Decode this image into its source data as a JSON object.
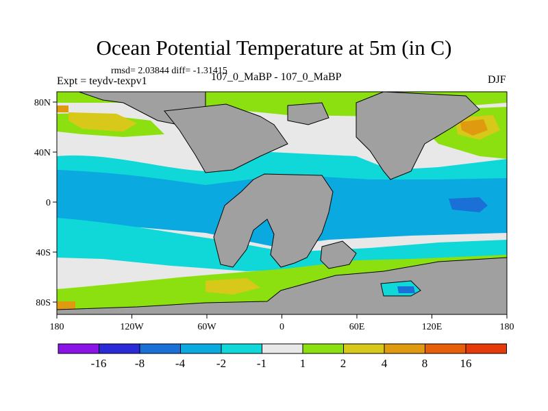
{
  "title": "Ocean Potential Temperature at 5m (in C)",
  "stats": "rmsd= 2.03844 diff= -1.31415",
  "experiment": "Expt = teydv-texpv1",
  "comparison": "107_0_MaBP - 107_0_MaBP",
  "season": "DJF",
  "x_ticks": [
    "180",
    "120W",
    "60W",
    "0",
    "60E",
    "120E",
    "180"
  ],
  "y_ticks": [
    "80N",
    "40N",
    "0",
    "40S",
    "80S"
  ],
  "colorbar": {
    "colors": [
      "#8a14e6",
      "#2a2ad6",
      "#1a70d6",
      "#0aaae0",
      "#10d8d8",
      "#e8e8e8",
      "#8ce010",
      "#d8c81a",
      "#e09a10",
      "#e6600a",
      "#e63a0a"
    ],
    "labels": [
      "-16",
      "-8",
      "-4",
      "-2",
      "-1",
      "1",
      "2",
      "4",
      "8",
      "16"
    ]
  },
  "land_color": "#a0a0a0"
}
